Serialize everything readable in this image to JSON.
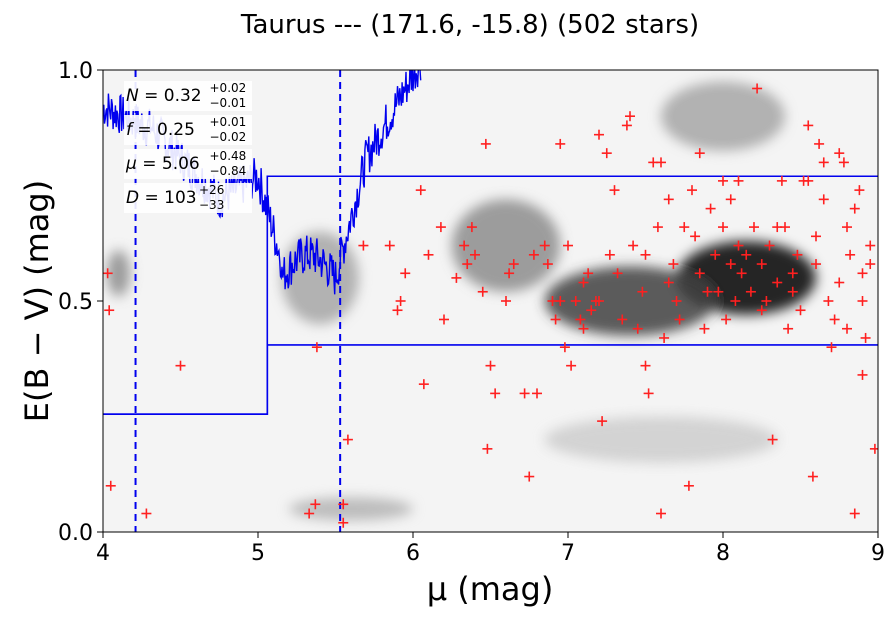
{
  "chart_data": {
    "type": "scatter",
    "title": "Taurus --- (171.6, -15.8) (502 stars)",
    "xlabel": "μ (mag)",
    "ylabel": "E(B − V) (mag)",
    "xlim": [
      4,
      9
    ],
    "ylim": [
      0,
      1
    ],
    "xticks": [
      "4",
      "5",
      "6",
      "7",
      "8",
      "9"
    ],
    "yticks": [
      "0.0",
      "0.5",
      "1.0"
    ],
    "annotations": [
      {
        "name": "N",
        "value": "0.32",
        "plus": "+0.02",
        "minus": "−0.01"
      },
      {
        "name": "f",
        "value": "0.25",
        "plus": "+0.01",
        "minus": "−0.02"
      },
      {
        "name": "μ",
        "value": "5.06",
        "plus": "+0.48",
        "minus": "−0.84"
      },
      {
        "name": "D",
        "value": "103",
        "plus": "+26",
        "minus": "−33"
      }
    ],
    "colors": {
      "stars": "#ff2020",
      "model": "#0000ee",
      "density_dark": "#000000",
      "density_light": "#ffffff"
    },
    "density_peaks": [
      {
        "x": 8.15,
        "y": 0.55,
        "w": 0.9,
        "h": 0.16,
        "a": 1.0
      },
      {
        "x": 7.4,
        "y": 0.5,
        "w": 1.1,
        "h": 0.15,
        "a": 0.75
      },
      {
        "x": 6.6,
        "y": 0.62,
        "w": 0.7,
        "h": 0.2,
        "a": 0.45
      },
      {
        "x": 5.4,
        "y": 0.55,
        "w": 0.5,
        "h": 0.2,
        "a": 0.35
      },
      {
        "x": 8.0,
        "y": 0.9,
        "w": 0.8,
        "h": 0.15,
        "a": 0.35
      },
      {
        "x": 7.6,
        "y": 0.2,
        "w": 1.5,
        "h": 0.1,
        "a": 0.2
      },
      {
        "x": 5.6,
        "y": 0.05,
        "w": 0.8,
        "h": 0.05,
        "a": 0.3
      },
      {
        "x": 4.1,
        "y": 0.56,
        "w": 0.15,
        "h": 0.1,
        "a": 0.45
      }
    ],
    "model_step": {
      "x_break": 5.06,
      "lower": [
        0.255,
        0.405
      ],
      "upper": [
        0.255,
        0.77
      ]
    },
    "vlines": [
      4.21,
      5.53
    ],
    "stars": [
      [
        4.03,
        0.56
      ],
      [
        4.04,
        0.48
      ],
      [
        4.05,
        0.1
      ],
      [
        4.28,
        0.04
      ],
      [
        4.5,
        0.36
      ],
      [
        5.33,
        0.04
      ],
      [
        5.37,
        0.06
      ],
      [
        5.38,
        0.4
      ],
      [
        5.55,
        0.06
      ],
      [
        5.55,
        0.02
      ],
      [
        5.58,
        0.2
      ],
      [
        5.68,
        0.62
      ],
      [
        5.85,
        0.62
      ],
      [
        5.9,
        0.48
      ],
      [
        5.92,
        0.5
      ],
      [
        5.95,
        0.56
      ],
      [
        6.05,
        0.74
      ],
      [
        6.07,
        0.32
      ],
      [
        6.1,
        0.6
      ],
      [
        6.18,
        0.66
      ],
      [
        6.2,
        0.46
      ],
      [
        6.28,
        0.55
      ],
      [
        6.33,
        0.62
      ],
      [
        6.35,
        0.58
      ],
      [
        6.38,
        0.66
      ],
      [
        6.4,
        0.6
      ],
      [
        6.45,
        0.52
      ],
      [
        6.47,
        0.84
      ],
      [
        6.48,
        0.18
      ],
      [
        6.5,
        0.36
      ],
      [
        6.53,
        0.3
      ],
      [
        6.6,
        0.5
      ],
      [
        6.62,
        0.56
      ],
      [
        6.65,
        0.58
      ],
      [
        6.72,
        0.3
      ],
      [
        6.75,
        0.12
      ],
      [
        6.78,
        0.6
      ],
      [
        6.8,
        0.3
      ],
      [
        6.85,
        0.62
      ],
      [
        6.87,
        0.58
      ],
      [
        6.9,
        0.5
      ],
      [
        6.92,
        0.46
      ],
      [
        6.95,
        0.84
      ],
      [
        6.98,
        0.4
      ],
      [
        7.0,
        0.62
      ],
      [
        7.02,
        0.36
      ],
      [
        7.05,
        0.5
      ],
      [
        7.08,
        0.46
      ],
      [
        7.1,
        0.44
      ],
      [
        7.13,
        0.56
      ],
      [
        7.15,
        0.48
      ],
      [
        7.18,
        0.5
      ],
      [
        7.2,
        0.86
      ],
      [
        7.22,
        0.24
      ],
      [
        7.25,
        0.82
      ],
      [
        7.27,
        0.6
      ],
      [
        7.3,
        0.74
      ],
      [
        7.32,
        0.56
      ],
      [
        7.35,
        0.46
      ],
      [
        7.38,
        0.88
      ],
      [
        7.4,
        0.9
      ],
      [
        7.42,
        0.62
      ],
      [
        7.45,
        0.44
      ],
      [
        7.48,
        0.52
      ],
      [
        7.5,
        0.36
      ],
      [
        7.52,
        0.3
      ],
      [
        7.55,
        0.8
      ],
      [
        7.58,
        0.66
      ],
      [
        7.6,
        0.8
      ],
      [
        7.62,
        0.42
      ],
      [
        7.65,
        0.72
      ],
      [
        7.68,
        0.58
      ],
      [
        7.7,
        0.5
      ],
      [
        7.72,
        0.46
      ],
      [
        7.75,
        0.66
      ],
      [
        7.78,
        0.1
      ],
      [
        7.8,
        0.74
      ],
      [
        7.82,
        0.64
      ],
      [
        7.85,
        0.56
      ],
      [
        7.88,
        0.44
      ],
      [
        7.9,
        0.52
      ],
      [
        7.92,
        0.7
      ],
      [
        7.95,
        0.6
      ],
      [
        7.97,
        0.52
      ],
      [
        8.0,
        0.66
      ],
      [
        8.02,
        0.46
      ],
      [
        8.05,
        0.58
      ],
      [
        8.08,
        0.5
      ],
      [
        8.1,
        0.62
      ],
      [
        8.12,
        0.56
      ],
      [
        8.15,
        0.6
      ],
      [
        8.18,
        0.52
      ],
      [
        8.2,
        0.66
      ],
      [
        8.22,
        0.96
      ],
      [
        8.25,
        0.58
      ],
      [
        8.28,
        0.5
      ],
      [
        8.3,
        0.62
      ],
      [
        8.32,
        0.2
      ],
      [
        8.35,
        0.54
      ],
      [
        8.38,
        0.76
      ],
      [
        8.4,
        0.66
      ],
      [
        8.42,
        0.44
      ],
      [
        8.45,
        0.56
      ],
      [
        8.48,
        0.6
      ],
      [
        8.5,
        0.48
      ],
      [
        8.52,
        0.76
      ],
      [
        8.55,
        0.88
      ],
      [
        8.58,
        0.12
      ],
      [
        8.6,
        0.58
      ],
      [
        8.62,
        0.84
      ],
      [
        8.65,
        0.72
      ],
      [
        8.68,
        0.5
      ],
      [
        8.7,
        0.4
      ],
      [
        8.72,
        0.46
      ],
      [
        8.75,
        0.54
      ],
      [
        8.78,
        0.8
      ],
      [
        8.8,
        0.66
      ],
      [
        8.82,
        0.6
      ],
      [
        8.85,
        0.7
      ],
      [
        8.88,
        0.74
      ],
      [
        8.9,
        0.5
      ],
      [
        8.92,
        0.42
      ],
      [
        8.95,
        0.58
      ],
      [
        8.98,
        0.18
      ],
      [
        8.85,
        0.04
      ],
      [
        8.9,
        0.34
      ],
      [
        8.1,
        0.76
      ],
      [
        7.85,
        0.82
      ],
      [
        8.55,
        0.76
      ],
      [
        8.65,
        0.8
      ],
      [
        8.75,
        0.82
      ],
      [
        8.0,
        0.76
      ],
      [
        7.5,
        0.6
      ],
      [
        7.1,
        0.54
      ],
      [
        6.95,
        0.5
      ],
      [
        8.35,
        0.66
      ],
      [
        8.25,
        0.48
      ],
      [
        8.45,
        0.52
      ],
      [
        7.65,
        0.54
      ],
      [
        7.2,
        0.5
      ],
      [
        8.05,
        0.72
      ],
      [
        8.6,
        0.64
      ],
      [
        8.8,
        0.44
      ],
      [
        7.6,
        0.04
      ],
      [
        8.95,
        0.62
      ],
      [
        8.9,
        0.56
      ]
    ]
  }
}
